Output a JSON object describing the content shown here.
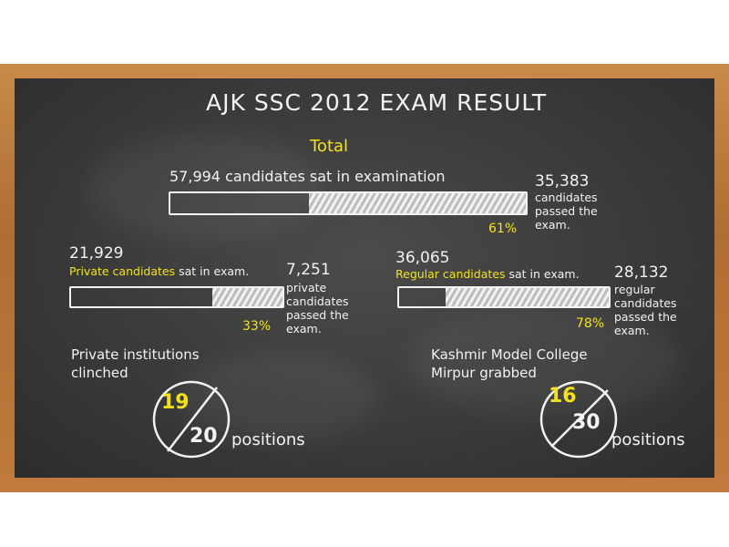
{
  "title": "AJK SSC 2012 EXAM RESULT",
  "total": {
    "heading": "Total",
    "sat_text": "57,994 candidates sat in examination",
    "passed_count": "35,383",
    "passed_text": [
      "candidates",
      "passed the",
      "exam."
    ],
    "percent_label": "61%"
  },
  "private": {
    "sat_count": "21,929",
    "sat_label_yellow": "Private candidates",
    "sat_label_rest": " sat in exam.",
    "passed_count": "7,251",
    "passed_text": [
      "private",
      "candidates",
      "passed the",
      "exam."
    ],
    "percent_label": "33%"
  },
  "regular": {
    "sat_count": "36,065",
    "sat_label_yellow": "Regular candidates",
    "sat_label_rest": " sat in exam.",
    "passed_count": "28,132",
    "passed_text": [
      "regular",
      "candidates",
      "passed the",
      "exam."
    ],
    "percent_label": "78%"
  },
  "private_institutions": {
    "caption": [
      "Private institutions",
      "clinched"
    ],
    "numerator": "19",
    "denominator": "20",
    "suffix": "positions"
  },
  "kashmir_college": {
    "caption": [
      "Kashmir Model College",
      "Mirpur grabbed"
    ],
    "numerator": "16",
    "denominator": "30",
    "suffix": "positions"
  },
  "colors": {
    "chalk": "#f2f2f2",
    "highlight": "#f3e219",
    "board": "#3a3a3a",
    "frame": "#b06d33"
  },
  "chart_data": {
    "type": "bar",
    "categories": [
      "Total",
      "Private candidates",
      "Regular candidates"
    ],
    "series": [
      {
        "name": "sat in exam",
        "values": [
          57994,
          21929,
          36065
        ]
      },
      {
        "name": "passed",
        "values": [
          35383,
          7251,
          28132
        ]
      }
    ],
    "percent_passed": [
      61,
      33,
      78
    ],
    "positions": [
      {
        "label": "Private institutions clinched",
        "value": 19,
        "out_of": 20
      },
      {
        "label": "Kashmir Model College Mirpur grabbed",
        "value": 16,
        "out_of": 30
      }
    ],
    "title": "AJK SSC 2012 EXAM RESULT"
  }
}
